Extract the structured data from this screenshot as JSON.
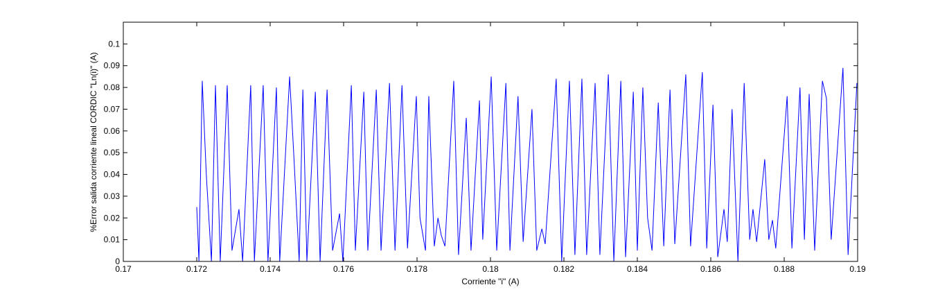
{
  "chart_data": {
    "type": "line",
    "xlabel": "Corriente \"i\" (A)",
    "ylabel": "%Error salida corriente lineal CORDIC \"Ln(i)\" (A)",
    "xlim": [
      0.17,
      0.19
    ],
    "ylim": [
      0,
      0.11
    ],
    "xticks": [
      0.17,
      0.172,
      0.174,
      0.176,
      0.178,
      0.18,
      0.182,
      0.184,
      0.186,
      0.188,
      0.19
    ],
    "yticks": [
      0,
      0.01,
      0.02,
      0.03,
      0.04,
      0.05,
      0.06,
      0.07,
      0.08,
      0.09,
      0.1
    ],
    "grid": false,
    "series": [
      {
        "color": "#0000ff",
        "x": [
          0.172,
          0.17206,
          0.17215,
          0.17226,
          0.1724,
          0.17251,
          0.17264,
          0.17283,
          0.17296,
          0.17315,
          0.17325,
          0.17347,
          0.17357,
          0.17381,
          0.17394,
          0.17417,
          0.17426,
          0.17453,
          0.17464,
          0.17479,
          0.17489,
          0.175,
          0.17523,
          0.17536,
          0.17555,
          0.1757,
          0.17589,
          0.17598,
          0.17621,
          0.17632,
          0.17655,
          0.17666,
          0.17689,
          0.17702,
          0.17725,
          0.1774,
          0.17759,
          0.17774,
          0.17798,
          0.17808,
          0.17823,
          0.17832,
          0.17847,
          0.17857,
          0.17866,
          0.17876,
          0.179,
          0.17913,
          0.17934,
          0.17947,
          0.1797,
          0.17979,
          0.18002,
          0.18017,
          0.18042,
          0.18053,
          0.18075,
          0.18089,
          0.18113,
          0.18126,
          0.1814,
          0.18149,
          0.18179,
          0.18194,
          0.18215,
          0.1823,
          0.18249,
          0.18262,
          0.18285,
          0.18298,
          0.18321,
          0.18336,
          0.18355,
          0.18368,
          0.18389,
          0.184,
          0.18415,
          0.18428,
          0.1844,
          0.18457,
          0.18472,
          0.18489,
          0.18502,
          0.18532,
          0.18545,
          0.18577,
          0.18589,
          0.18606,
          0.18619,
          0.18636,
          0.18645,
          0.18658,
          0.18674,
          0.18691,
          0.18706,
          0.18715,
          0.18725,
          0.18747,
          0.18758,
          0.18768,
          0.18777,
          0.18808,
          0.18821,
          0.18843,
          0.18855,
          0.18868,
          0.18883,
          0.18904,
          0.18915,
          0.18928,
          0.1896,
          0.18974,
          0.18998
        ],
        "values": [
          0.025,
          0,
          0.083,
          0.04,
          0,
          0.081,
          0,
          0.081,
          0.005,
          0.024,
          0,
          0.081,
          0,
          0.081,
          0,
          0.08,
          0,
          0.085,
          0.05,
          0,
          0.079,
          0,
          0.078,
          0,
          0.079,
          0.005,
          0.022,
          0,
          0.081,
          0.005,
          0.078,
          0.005,
          0.079,
          0.005,
          0.082,
          0.005,
          0.081,
          0.006,
          0.076,
          0.02,
          0.005,
          0.076,
          0.007,
          0.02,
          0.012,
          0.007,
          0.083,
          0.003,
          0.066,
          0.005,
          0.074,
          0.01,
          0.085,
          0.005,
          0.082,
          0.005,
          0.076,
          0.009,
          0.07,
          0.005,
          0.015,
          0.008,
          0.084,
          0,
          0.083,
          0.003,
          0.084,
          0.003,
          0.082,
          0.003,
          0.086,
          0,
          0.083,
          0.002,
          0.078,
          0.005,
          0.08,
          0.02,
          0.005,
          0.073,
          0.007,
          0.079,
          0.008,
          0.086,
          0.007,
          0.087,
          0.006,
          0.072,
          0.002,
          0.024,
          0.009,
          0.07,
          0,
          0.082,
          0.01,
          0.024,
          0.009,
          0.047,
          0.01,
          0.019,
          0.006,
          0.076,
          0.006,
          0.08,
          0.01,
          0.077,
          0.005,
          0.083,
          0.075,
          0.01,
          0.089,
          0.003,
          0.082
        ]
      }
    ]
  }
}
